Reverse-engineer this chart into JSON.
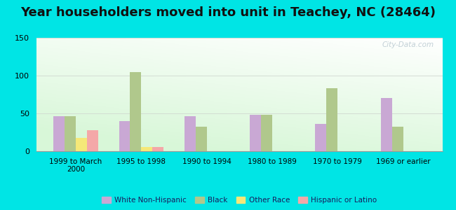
{
  "title": "Year householders moved into unit in Teachey, NC (28464)",
  "categories": [
    "1999 to March\n2000",
    "1995 to 1998",
    "1990 to 1994",
    "1980 to 1989",
    "1970 to 1979",
    "1969 or earlier"
  ],
  "series": {
    "White Non-Hispanic": [
      46,
      40,
      46,
      48,
      36,
      70
    ],
    "Black": [
      46,
      105,
      32,
      48,
      83,
      32
    ],
    "Other Race": [
      18,
      6,
      0,
      0,
      0,
      0
    ],
    "Hispanic or Latino": [
      28,
      6,
      0,
      0,
      0,
      0
    ]
  },
  "colors": {
    "White Non-Hispanic": "#c9a8d4",
    "Black": "#b0c88c",
    "Other Race": "#f5e878",
    "Hispanic or Latino": "#f4a8a8"
  },
  "ylim": [
    0,
    150
  ],
  "yticks": [
    0,
    50,
    100,
    150
  ],
  "outer_bg": "#00e5e5",
  "title_fontsize": 13,
  "bar_width": 0.17,
  "watermark": "City-Data.com"
}
